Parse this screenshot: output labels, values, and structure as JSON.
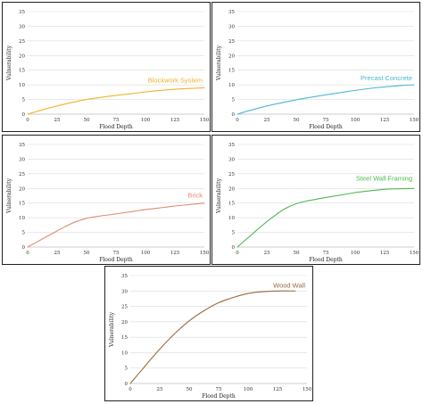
{
  "chart_data": [
    {
      "type": "line",
      "xlabel": "Flood Depth",
      "ylabel": "Vulnerability",
      "xlim": [
        0,
        150
      ],
      "ylim": [
        0,
        35
      ],
      "xticks": [
        "0",
        "25",
        "50",
        "75",
        "100",
        "125",
        "150"
      ],
      "yticks": [
        "0",
        "5",
        "10",
        "15",
        "20",
        "25",
        "30",
        "35"
      ],
      "series": [
        {
          "name": "Blockwork System",
          "color": "#f0b429",
          "x": [
            0,
            10,
            20,
            30,
            40,
            50,
            60,
            75,
            90,
            100,
            110,
            125,
            140,
            150
          ],
          "y": [
            0,
            1.2,
            2.3,
            3.3,
            4.2,
            5.0,
            5.6,
            6.4,
            7.1,
            7.6,
            8.0,
            8.5,
            8.8,
            9.0
          ]
        }
      ]
    },
    {
      "type": "line",
      "xlabel": "Flood Depth",
      "ylabel": "Vulnerability",
      "xlim": [
        0,
        150
      ],
      "ylim": [
        0,
        35
      ],
      "xticks": [
        "0",
        "25",
        "50",
        "75",
        "100",
        "125",
        "150"
      ],
      "yticks": [
        "0",
        "5",
        "10",
        "15",
        "20",
        "25",
        "30",
        "35"
      ],
      "series": [
        {
          "name": "Precast Concrete",
          "color": "#4bb8d4",
          "x": [
            0,
            10,
            25,
            40,
            50,
            60,
            75,
            90,
            100,
            115,
            125,
            140,
            150
          ],
          "y": [
            0,
            1.2,
            2.8,
            4.1,
            4.9,
            5.6,
            6.6,
            7.5,
            8.1,
            8.9,
            9.3,
            9.8,
            10.0
          ]
        }
      ]
    },
    {
      "type": "line",
      "xlabel": "Flood Depth",
      "ylabel": "Vulnerability",
      "xlim": [
        0,
        150
      ],
      "ylim": [
        0,
        35
      ],
      "xticks": [
        "0",
        "25",
        "50",
        "75",
        "100",
        "125",
        "150"
      ],
      "yticks": [
        "0",
        "5",
        "10",
        "15",
        "20",
        "25",
        "30",
        "35"
      ],
      "series": [
        {
          "name": "Brick",
          "color": "#e08a72",
          "x": [
            0,
            10,
            20,
            30,
            40,
            50,
            60,
            75,
            90,
            100,
            115,
            125,
            140,
            150
          ],
          "y": [
            0,
            2.2,
            4.4,
            6.6,
            8.5,
            9.8,
            10.5,
            11.3,
            12.2,
            12.8,
            13.5,
            14.0,
            14.6,
            15.0
          ]
        }
      ]
    },
    {
      "type": "line",
      "xlabel": "Flood Depth",
      "ylabel": "Vulnerability",
      "xlim": [
        0,
        150
      ],
      "ylim": [
        0,
        35
      ],
      "xticks": [
        "0",
        "25",
        "50",
        "75",
        "100",
        "125",
        "150"
      ],
      "yticks": [
        "0",
        "5",
        "10",
        "15",
        "20",
        "25",
        "30",
        "35"
      ],
      "series": [
        {
          "name": "Steel Wall Framing",
          "color": "#4fb84f",
          "x": [
            0,
            10,
            20,
            30,
            40,
            50,
            60,
            75,
            90,
            100,
            115,
            125,
            140,
            150
          ],
          "y": [
            0,
            3.5,
            7.0,
            10.2,
            13.0,
            14.8,
            15.8,
            16.9,
            17.9,
            18.6,
            19.3,
            19.7,
            19.9,
            20.0
          ]
        }
      ]
    },
    {
      "type": "line",
      "xlabel": "Flood Depth",
      "ylabel": "Vulnerability",
      "xlim": [
        0,
        150
      ],
      "ylim": [
        0,
        35
      ],
      "xticks": [
        "0",
        "25",
        "50",
        "75",
        "100",
        "125",
        "150"
      ],
      "yticks": [
        "0",
        "5",
        "10",
        "15",
        "20",
        "25",
        "30",
        "35"
      ],
      "series": [
        {
          "name": "Wood Wall",
          "color": "#9a6a3c",
          "x": [
            0,
            10,
            20,
            30,
            40,
            50,
            60,
            75,
            90,
            100,
            110,
            125,
            140
          ],
          "y": [
            0,
            4.5,
            9.0,
            13.2,
            17.0,
            20.3,
            23.0,
            26.2,
            28.2,
            29.2,
            29.7,
            30.0,
            30.0
          ]
        }
      ]
    }
  ]
}
